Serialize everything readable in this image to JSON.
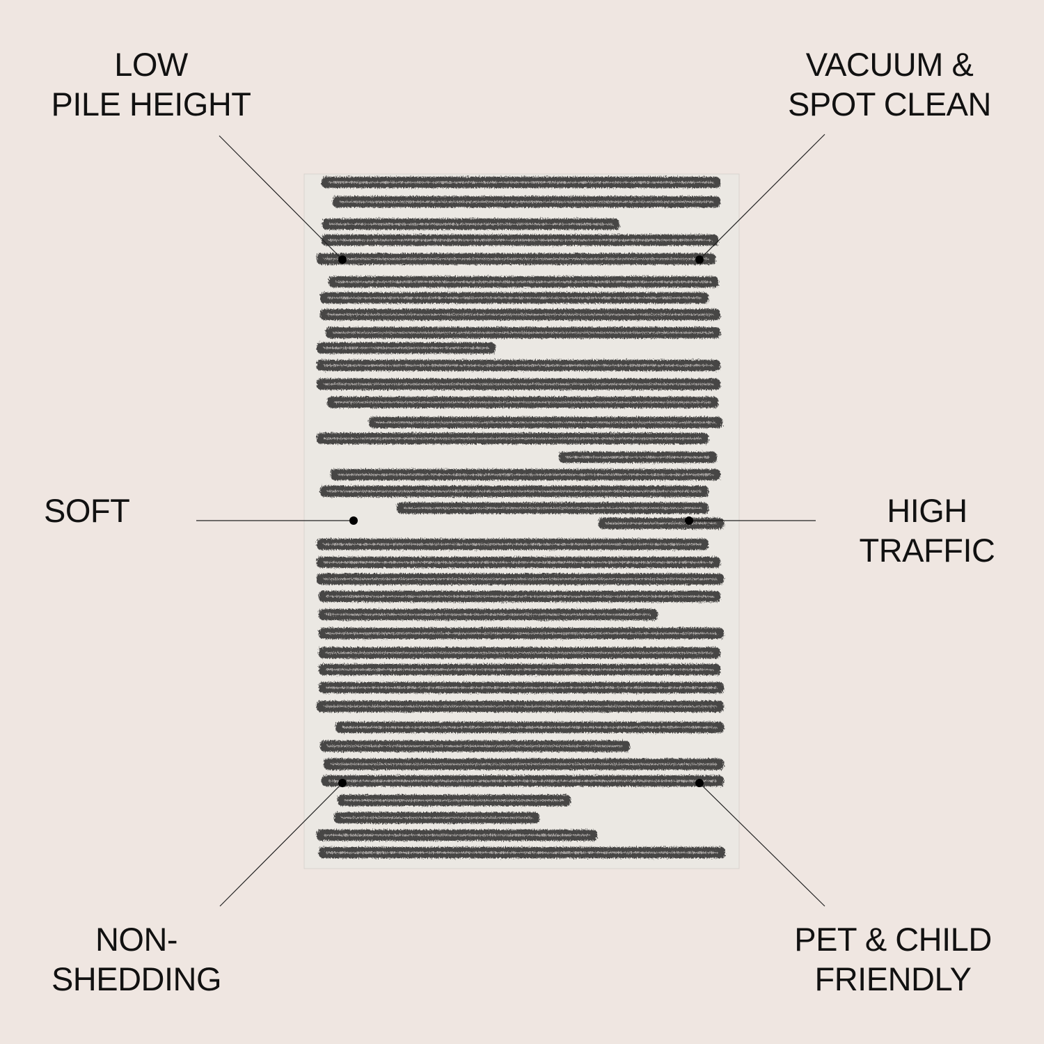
{
  "colors": {
    "background": "#efe6e1",
    "rug_base": "#ebe8e3",
    "stripe": "#2b2b2b",
    "text": "#111111"
  },
  "features": [
    {
      "id": "low-pile-height",
      "lines": [
        "LOW",
        "PILE HEIGHT"
      ]
    },
    {
      "id": "vacuum-spot-clean",
      "lines": [
        "VACUUM &",
        "SPOT CLEAN"
      ]
    },
    {
      "id": "soft",
      "lines": [
        "SOFT"
      ]
    },
    {
      "id": "high-traffic",
      "lines": [
        "HIGH",
        "TRAFFIC"
      ]
    },
    {
      "id": "non-shedding",
      "lines": [
        "NON-",
        "SHEDDING"
      ]
    },
    {
      "id": "pet-child-friendly",
      "lines": [
        "PET & CHILD",
        "FRIENDLY"
      ]
    }
  ]
}
